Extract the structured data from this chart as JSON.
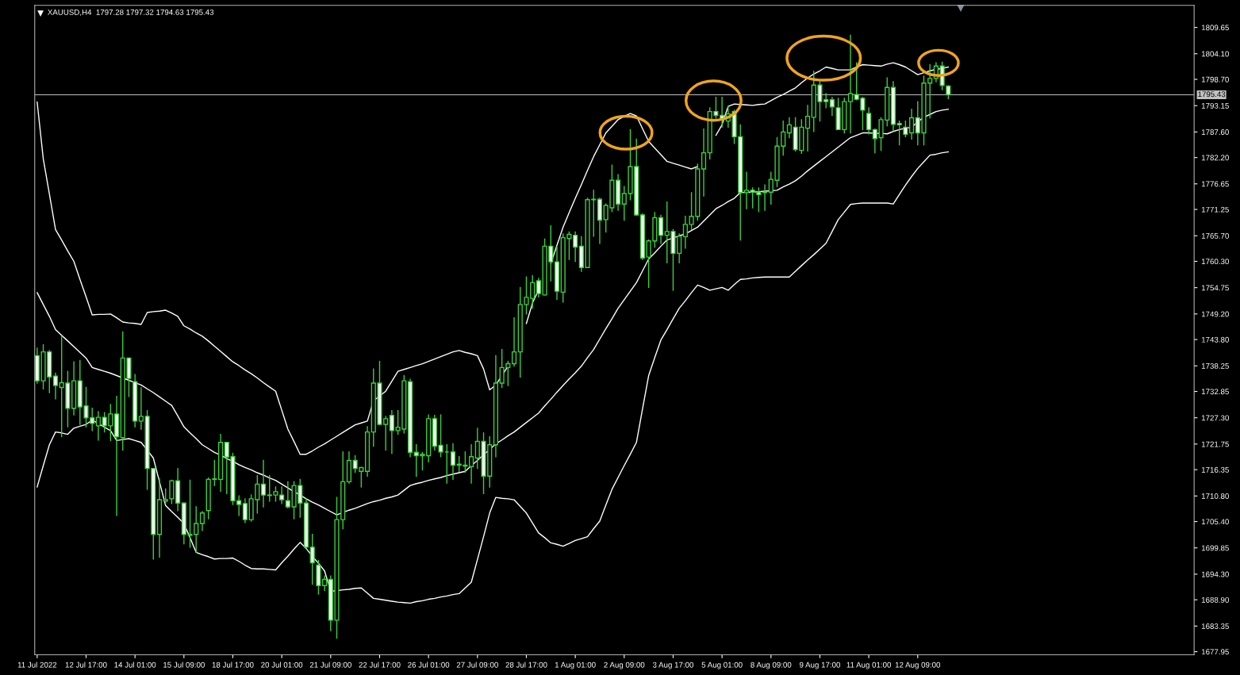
{
  "chart_data": {
    "type": "candlestick",
    "title": "XAUUSD,H4  1797.28 1797.32 1794.63 1795.43",
    "ylim": [
      1677.3,
      1814.3
    ],
    "categories": [
      "11 Jul 2022",
      null,
      null,
      null,
      null,
      null,
      null,
      null,
      "12 Jul 17:00",
      null,
      null,
      null,
      null,
      null,
      null,
      null,
      "14 Jul 01:00",
      null,
      null,
      null,
      null,
      null,
      null,
      null,
      "15 Jul 09:00",
      null,
      null,
      null,
      null,
      null,
      null,
      null,
      "18 Jul 17:00",
      null,
      null,
      null,
      null,
      null,
      null,
      null,
      "20 Jul 01:00",
      null,
      null,
      null,
      null,
      null,
      null,
      null,
      "21 Jul 09:00",
      null,
      null,
      null,
      null,
      null,
      null,
      null,
      "22 Jul 17:00",
      null,
      null,
      null,
      null,
      null,
      null,
      null,
      "26 Jul 01:00",
      null,
      null,
      null,
      null,
      null,
      null,
      null,
      "27 Jul 09:00",
      null,
      null,
      null,
      null,
      null,
      null,
      null,
      "28 Jul 17:00",
      null,
      null,
      null,
      null,
      null,
      null,
      null,
      "1 Aug 01:00",
      null,
      null,
      null,
      null,
      null,
      null,
      null,
      "2 Aug 09:00",
      null,
      null,
      null,
      null,
      null,
      null,
      null,
      "3 Aug 17:00",
      null,
      null,
      null,
      null,
      null,
      null,
      null,
      "5 Aug 01:00",
      null,
      null,
      null,
      null,
      null,
      null,
      null,
      "8 Aug 09:00",
      null,
      null,
      null,
      null,
      null,
      null,
      null,
      "9 Aug 17:00",
      null,
      null,
      null,
      null,
      null,
      null,
      null,
      "11 Aug 01:00",
      null,
      null,
      null,
      null,
      null,
      null,
      null,
      "12 Aug 09:00",
      null,
      null,
      null,
      null,
      null
    ],
    "yticks": [
      {
        "value": 1677.95,
        "label": "1677.95"
      },
      {
        "value": 1683.35,
        "label": "1683.35"
      },
      {
        "value": 1688.9,
        "label": "1688.90"
      },
      {
        "value": 1694.3,
        "label": "1694.30"
      },
      {
        "value": 1699.85,
        "label": "1699.85"
      },
      {
        "value": 1705.4,
        "label": "1705.40"
      },
      {
        "value": 1710.8,
        "label": "1710.80"
      },
      {
        "value": 1716.35,
        "label": "1716.35"
      },
      {
        "value": 1721.75,
        "label": "1721.75"
      },
      {
        "value": 1727.3,
        "label": "1727.30"
      },
      {
        "value": 1732.85,
        "label": "1732.85"
      },
      {
        "value": 1738.25,
        "label": "1738.25"
      },
      {
        "value": 1743.8,
        "label": "1743.80"
      },
      {
        "value": 1749.2,
        "label": "1749.20"
      },
      {
        "value": 1754.75,
        "label": "1754.75"
      },
      {
        "value": 1760.3,
        "label": "1760.30"
      },
      {
        "value": 1765.7,
        "label": "1765.70"
      },
      {
        "value": 1771.25,
        "label": "1771.25"
      },
      {
        "value": 1776.65,
        "label": "1776.65"
      },
      {
        "value": 1782.2,
        "label": "1782.20"
      },
      {
        "value": 1787.6,
        "label": "1787.60"
      },
      {
        "value": 1793.15,
        "label": "1793.15"
      },
      {
        "value": 1798.7,
        "label": "1798.70"
      },
      {
        "value": 1804.1,
        "label": "1804.10"
      },
      {
        "value": 1809.65,
        "label": "1809.65"
      }
    ],
    "ref_lines": [
      {
        "axis": "y",
        "value": 1795.43,
        "label": "1795.43",
        "color": "#c0c0c0"
      }
    ],
    "series": [
      {
        "type": "line",
        "color": "#ffffff",
        "values": [
          1793.9,
          1781.9,
          1774.5,
          1767.0,
          1764.8,
          1762.5,
          1760.3,
          1756.5,
          1752.8,
          1749.0,
          1749.1,
          1749.1,
          1749.2,
          1748.4,
          1747.5,
          1747.3,
          1747.2,
          1747.0,
          1749.5,
          1749.7,
          1749.8,
          1750.0,
          1749.4,
          1748.7,
          1746.7,
          1746.0,
          1745.2,
          1744.5,
          1743.5,
          1742.4,
          1741.3,
          1740.2,
          1739.1,
          1738.3,
          1737.4,
          1736.6,
          1735.7,
          1734.7,
          1733.8,
          1732.9,
          1728.9,
          1724.9,
          1722.3,
          1719.6,
          1719.6,
          1720.3,
          1721.1,
          1721.8,
          1722.6,
          1723.4,
          1724.2,
          1725.0,
          1725.8,
          1726.2,
          1726.6,
          1730.9,
          1731.9,
          1732.9,
          1735.0,
          1737.1,
          1737.5,
          1737.9,
          1738.3,
          1738.7,
          1739.2,
          1739.7,
          1740.2,
          1740.7,
          1741.2,
          1741.5,
          1741.1,
          1740.8,
          1740.4,
          1737.6,
          1733.2,
          1734.2,
          1736.2,
          1738.2,
          null,
          null,
          1747.2,
          1751.5,
          1754.3,
          null,
          1759.8,
          1763.7,
          1767.5,
          1770.6,
          1773.6,
          1776.5,
          1779.5,
          1782.4,
          1784.9,
          1787.4,
          1788.8,
          1790.2,
          1790.9,
          1791.5,
          1791.0,
          1788.3,
          1785.6,
          1784.2,
          1782.8,
          1781.4,
          1781.0,
          1780.6,
          1780.2,
          1779.8,
          1780.3,
          null,
          null,
          1786.9,
          1789.1,
          1793.0,
          1793.5,
          1793.4,
          1793.3,
          1793.2,
          1793.4,
          1793.5,
          1794.2,
          1794.9,
          1795.5,
          1796.2,
          1796.9,
          1798.0,
          1799.0,
          1799.8,
          1800.5,
          1801.3,
          1801.0,
          1800.7,
          1800.7,
          1800.7,
          1801.3,
          1801.8,
          1801.7,
          1801.6,
          1801.5,
          1801.9,
          1802.2,
          1801.8,
          1801.3,
          1800.5,
          1799.7,
          1800.1,
          1800.5,
          1800.8,
          1801.0,
          1801.3
        ]
      },
      {
        "type": "line",
        "color": "#ffffff",
        "values": [
          1753.7,
          1751.2,
          1748.7,
          1745.9,
          1744.7,
          1743.5,
          1742.3,
          1741.1,
          1739.9,
          1737.9,
          1737.5,
          1737.1,
          1736.7,
          1736.2,
          1735.7,
          1735.2,
          1734.7,
          1734.2,
          1733.4,
          1732.6,
          1731.7,
          1730.8,
          1729.9,
          1727.7,
          1725.4,
          1724.1,
          1722.9,
          1721.6,
          1720.8,
          1720.0,
          1719.4,
          1718.7,
          1718.1,
          1717.4,
          1716.8,
          1716.3,
          1715.7,
          1715.2,
          1714.6,
          1714.1,
          1713.3,
          1712.5,
          1711.7,
          1711.0,
          1710.2,
          1709.5,
          1708.9,
          1708.2,
          1707.5,
          1706.8,
          1707.3,
          1707.8,
          1708.2,
          1708.7,
          1709.2,
          1709.6,
          1709.9,
          1710.3,
          1710.6,
          1711.0,
          1712.0,
          1713.0,
          1713.4,
          1713.7,
          1714.1,
          1714.4,
          1714.7,
          1715.1,
          1715.4,
          1715.7,
          1716.0,
          1717.2,
          1718.3,
          1719.5,
          1720.6,
          1721.8,
          1722.6,
          1723.5,
          1724.3,
          1725.3,
          1726.3,
          1727.3,
          1728.3,
          1729.8,
          1731.2,
          1732.7,
          1734.1,
          1735.5,
          1736.8,
          1738.2,
          1740.0,
          1741.7,
          1743.9,
          1746.1,
          1748.2,
          1750.4,
          1752.2,
          1754.0,
          1755.8,
          1758.3,
          1760.8,
          1762.1,
          1763.5,
          1764.8,
          1765.2,
          1765.7,
          1766.1,
          1766.8,
          1767.5,
          1768.8,
          1770.1,
          1771.4,
          1772.1,
          1772.9,
          1773.6,
          1774.8,
          1774.9,
          1774.9,
          1775.0,
          1775.1,
          1775.2,
          1775.3,
          1776.0,
          1776.6,
          1777.3,
          1778.3,
          1779.4,
          1780.4,
          1781.4,
          1782.4,
          1783.4,
          1784.4,
          1785.4,
          1786.4,
          1786.9,
          1787.4,
          1787.4,
          1787.3,
          1787.3,
          1787.2,
          1787.7,
          1788.1,
          1788.4,
          1788.6,
          1789.7,
          1790.7,
          1791.3,
          1791.9,
          1792.2,
          1792.4
        ]
      },
      {
        "type": "line",
        "color": "#ffffff",
        "values": [
          1712.7,
          1717.2,
          1721.6,
          1724.3,
          1724.1,
          1723.8,
          1725.1,
          1725.5,
          1725.9,
          1726.8,
          1726.1,
          1725.3,
          1724.6,
          1722.5,
          1722.7,
          1722.9,
          1722.5,
          1722.1,
          1720.5,
          1718.8,
          1713.8,
          1708.8,
          1707.5,
          1706.3,
          1705.0,
          1702.0,
          1698.9,
          1698.4,
          1698.0,
          1697.5,
          1697.6,
          1697.6,
          1697.7,
          1697.0,
          1696.2,
          1695.5,
          1695.4,
          1695.4,
          1695.3,
          1695.2,
          1696.7,
          1698.1,
          1699.6,
          1701.0,
          1699.7,
          1698.1,
          1696.6,
          1695.0,
          1690.7,
          1690.8,
          1691.0,
          1691.1,
          1691.3,
          1691.4,
          1690.3,
          1689.2,
          1689.0,
          1688.8,
          1688.6,
          1688.4,
          1688.3,
          1688.2,
          1688.5,
          1688.7,
          1689.0,
          1689.2,
          1689.5,
          1689.7,
          1690.0,
          1690.2,
          1691.4,
          1692.6,
          1697.4,
          1702.2,
          1707.2,
          1710.5,
          1710.3,
          1710.2,
          1710.0,
          1708.6,
          1707.2,
          1705.1,
          1703.0,
          1702.0,
          1700.9,
          1700.6,
          1700.2,
          1700.8,
          1701.4,
          1701.8,
          1702.2,
          1703.9,
          1705.5,
          1708.9,
          1712.2,
          1714.7,
          1717.2,
          1719.6,
          1722.1,
          1729.2,
          1736.2,
          1740.0,
          1743.7,
          1745.9,
          1748.2,
          1750.4,
          1752.0,
          1753.7,
          1755.3,
          1754.8,
          1754.2,
          1754.5,
          1754.8,
          1754.2,
          1755.4,
          1756.5,
          1756.6,
          1756.8,
          1756.9,
          1757.0,
          1757.0,
          1757.0,
          1757.0,
          1757.0,
          1758.2,
          1759.4,
          1760.6,
          1761.7,
          1762.9,
          1764.1,
          1766.6,
          1769.1,
          1770.7,
          1772.3,
          1772.5,
          1772.6,
          1772.6,
          1772.6,
          1772.6,
          1772.6,
          1772.4,
          1774.4,
          1776.4,
          1778.2,
          1779.9,
          1781.3,
          1782.7,
          1782.9,
          1783.2,
          1783.4
        ]
      },
      {
        "color": "#3ccf3c",
        "ohlc": [
          [
            1740.4,
            1742.0,
            1734.6,
            1735.1
          ],
          [
            1735.1,
            1742.7,
            1733.4,
            1741.2
          ],
          [
            1741.2,
            1741.5,
            1732.6,
            1735.9
          ],
          [
            1736.1,
            1736.7,
            1731.3,
            1734.1
          ],
          [
            1733.7,
            1744.5,
            1723.3,
            1734.7
          ],
          [
            1734.6,
            1737.1,
            1725.4,
            1729.3
          ],
          [
            1729.3,
            1739.1,
            1727.9,
            1735.1
          ],
          [
            1735.1,
            1739.4,
            1725.9,
            1729.6
          ],
          [
            1729.8,
            1733.7,
            1725.4,
            1727.3
          ],
          [
            1727.3,
            1729.3,
            1724.6,
            1726.1
          ],
          [
            1725.6,
            1728.6,
            1722.6,
            1727.4
          ],
          [
            1727.4,
            1728.4,
            1724.3,
            1725.6
          ],
          [
            1725.6,
            1730.1,
            1722.5,
            1728.1
          ],
          [
            1728.1,
            1731.8,
            1706.7,
            1723.3
          ],
          [
            1723.1,
            1745.4,
            1720.5,
            1739.9
          ],
          [
            1739.9,
            1739.9,
            1731.8,
            1735.6
          ],
          [
            1734.9,
            1736.4,
            1725.4,
            1726.6
          ],
          [
            1726.6,
            1733.6,
            1724.9,
            1727.6
          ],
          [
            1727.6,
            1728.8,
            1712.2,
            1716.6
          ],
          [
            1716.6,
            1716.6,
            1697.5,
            1702.7
          ],
          [
            1702.7,
            1714.5,
            1697.9,
            1710.0
          ],
          [
            1709.7,
            1712.3,
            1709.2,
            1710.0
          ],
          [
            1710.2,
            1714.1,
            1709.2,
            1714.0
          ],
          [
            1714.0,
            1716.6,
            1707.7,
            1709.3
          ],
          [
            1709.3,
            1709.3,
            1700.7,
            1702.7
          ],
          [
            1702.7,
            1714.1,
            1700.0,
            1702.5
          ],
          [
            1702.7,
            1708.5,
            1698.9,
            1705.0
          ],
          [
            1705.0,
            1707.5,
            1703.5,
            1707.2
          ],
          [
            1707.7,
            1714.6,
            1706.0,
            1714.3
          ],
          [
            1714.3,
            1718.3,
            1713.0,
            1714.4
          ],
          [
            1714.3,
            1723.8,
            1711.8,
            1722.1
          ],
          [
            1722.1,
            1722.1,
            1711.3,
            1719.0
          ],
          [
            1719.1,
            1719.8,
            1709.0,
            1709.8
          ],
          [
            1709.8,
            1710.8,
            1706.7,
            1709.0
          ],
          [
            1709.2,
            1710.2,
            1705.2,
            1705.8
          ],
          [
            1705.8,
            1711.0,
            1705.5,
            1710.2
          ],
          [
            1710.0,
            1715.1,
            1707.2,
            1713.3
          ],
          [
            1713.3,
            1718.3,
            1708.5,
            1711.0
          ],
          [
            1711.0,
            1715.1,
            1709.7,
            1710.9
          ],
          [
            1711.0,
            1712.7,
            1709.7,
            1711.7
          ],
          [
            1711.0,
            1712.7,
            1709.2,
            1710.0
          ],
          [
            1709.8,
            1713.8,
            1708.3,
            1708.5
          ],
          [
            1708.5,
            1713.8,
            1706.0,
            1713.0
          ],
          [
            1713.0,
            1714.3,
            1706.3,
            1709.3
          ],
          [
            1709.3,
            1710.2,
            1700.0,
            1700.0
          ],
          [
            1700.0,
            1702.7,
            1692.2,
            1696.7
          ],
          [
            1696.2,
            1697.2,
            1690.1,
            1691.9
          ],
          [
            1691.9,
            1693.9,
            1690.9,
            1693.2
          ],
          [
            1693.2,
            1693.9,
            1682.4,
            1684.6
          ],
          [
            1684.6,
            1710.5,
            1680.8,
            1705.8
          ],
          [
            1705.8,
            1720.1,
            1703.9,
            1713.8
          ],
          [
            1713.8,
            1720.1,
            1713.5,
            1718.3
          ],
          [
            1718.3,
            1719.3,
            1715.8,
            1716.6
          ],
          [
            1716.0,
            1716.8,
            1712.7,
            1716.8
          ],
          [
            1716.0,
            1725.4,
            1715.0,
            1724.3
          ],
          [
            1724.3,
            1737.6,
            1721.3,
            1734.6
          ],
          [
            1734.6,
            1739.2,
            1725.8,
            1725.9
          ],
          [
            1725.9,
            1727.6,
            1720.5,
            1727.1
          ],
          [
            1727.8,
            1728.8,
            1719.8,
            1724.6
          ],
          [
            1724.6,
            1728.8,
            1723.8,
            1725.3
          ],
          [
            1724.9,
            1736.2,
            1724.1,
            1735.1
          ],
          [
            1734.9,
            1735.4,
            1719.1,
            1720.0
          ],
          [
            1720.0,
            1721.6,
            1715.0,
            1719.3
          ],
          [
            1719.3,
            1720.0,
            1716.3,
            1719.6
          ],
          [
            1719.3,
            1727.9,
            1718.0,
            1727.1
          ],
          [
            1727.1,
            1727.8,
            1720.5,
            1721.3
          ],
          [
            1721.5,
            1727.9,
            1719.1,
            1720.1
          ],
          [
            1720.1,
            1721.6,
            1713.5,
            1720.1
          ],
          [
            1720.1,
            1721.8,
            1714.3,
            1717.3
          ],
          [
            1717.5,
            1719.1,
            1716.0,
            1717.3
          ],
          [
            1717.3,
            1720.1,
            1715.8,
            1717.1
          ],
          [
            1717.0,
            1721.6,
            1713.5,
            1719.1
          ],
          [
            1718.8,
            1725.1,
            1716.6,
            1722.3
          ],
          [
            1722.3,
            1724.1,
            1711.3,
            1715.0
          ],
          [
            1715.0,
            1723.3,
            1712.7,
            1721.6
          ],
          [
            1721.6,
            1740.4,
            1719.1,
            1734.6
          ],
          [
            1734.6,
            1741.7,
            1733.7,
            1737.9
          ],
          [
            1737.9,
            1739.2,
            1734.1,
            1738.7
          ],
          [
            1738.7,
            1748.4,
            1738.2,
            1741.2
          ],
          [
            1741.2,
            1754.8,
            1735.9,
            1751.2
          ],
          [
            1751.2,
            1757.0,
            1749.2,
            1752.7
          ],
          [
            1752.5,
            1757.3,
            1750.4,
            1755.8
          ],
          [
            1756.2,
            1756.7,
            1752.8,
            1753.5
          ],
          [
            1753.2,
            1765.0,
            1753.2,
            1763.5
          ],
          [
            1763.5,
            1767.8,
            1756.2,
            1760.2
          ],
          [
            1760.2,
            1763.3,
            1752.3,
            1754.0
          ],
          [
            1753.8,
            1766.1,
            1751.7,
            1765.3
          ],
          [
            1765.1,
            1766.5,
            1760.7,
            1766.0
          ],
          [
            1765.8,
            1766.5,
            1760.3,
            1763.3
          ],
          [
            1763.5,
            1765.5,
            1758.2,
            1759.0
          ],
          [
            1759.0,
            1773.6,
            1759.0,
            1773.3
          ],
          [
            1773.3,
            1775.3,
            1765.6,
            1773.4
          ],
          [
            1773.4,
            1773.6,
            1764.1,
            1769.0
          ],
          [
            1769.1,
            1772.4,
            1766.5,
            1772.1
          ],
          [
            1771.6,
            1780.6,
            1770.8,
            1777.4
          ],
          [
            1777.4,
            1778.6,
            1771.1,
            1772.4
          ],
          [
            1772.4,
            1776.1,
            1769.0,
            1774.6
          ],
          [
            1774.6,
            1788.1,
            1773.3,
            1780.3
          ],
          [
            1780.3,
            1786.1,
            1770.0,
            1770.1
          ],
          [
            1770.1,
            1770.3,
            1760.7,
            1761.0
          ],
          [
            1761.2,
            1764.8,
            1754.8,
            1764.6
          ],
          [
            1764.6,
            1770.6,
            1763.3,
            1769.5
          ],
          [
            1769.5,
            1770.0,
            1764.1,
            1765.8
          ],
          [
            1765.8,
            1772.8,
            1760.0,
            1766.6
          ],
          [
            1766.6,
            1767.0,
            1754.2,
            1762.0
          ],
          [
            1762.0,
            1766.1,
            1760.0,
            1765.6
          ],
          [
            1765.5,
            1769.8,
            1763.1,
            1768.1
          ],
          [
            1768.1,
            1774.8,
            1767.0,
            1769.8
          ],
          [
            1769.8,
            1780.8,
            1769.0,
            1779.8
          ],
          [
            1779.8,
            1788.2,
            1774.1,
            1783.2
          ],
          [
            1783.2,
            1792.7,
            1781.9,
            1791.9
          ],
          [
            1791.9,
            1794.9,
            1790.6,
            1791.1
          ],
          [
            1791.1,
            1794.9,
            1788.6,
            1790.2
          ],
          [
            1789.9,
            1793.0,
            1788.6,
            1791.4
          ],
          [
            1791.9,
            1792.2,
            1785.2,
            1786.6
          ],
          [
            1786.6,
            1789.1,
            1764.8,
            1774.8
          ],
          [
            1774.8,
            1779.1,
            1771.4,
            1775.3
          ],
          [
            1775.3,
            1775.8,
            1771.6,
            1774.9
          ],
          [
            1774.9,
            1775.8,
            1770.8,
            1774.4
          ],
          [
            1774.8,
            1776.4,
            1771.1,
            1774.9
          ],
          [
            1774.9,
            1779.1,
            1772.4,
            1777.6
          ],
          [
            1777.4,
            1786.4,
            1776.1,
            1784.6
          ],
          [
            1784.6,
            1789.9,
            1782.7,
            1787.6
          ],
          [
            1787.4,
            1790.6,
            1786.4,
            1789.1
          ],
          [
            1788.6,
            1790.6,
            1783.6,
            1783.9
          ],
          [
            1783.7,
            1790.2,
            1783.1,
            1788.6
          ],
          [
            1788.4,
            1793.2,
            1783.6,
            1790.9
          ],
          [
            1790.7,
            1800.4,
            1787.7,
            1797.5
          ],
          [
            1797.5,
            1798.2,
            1789.9,
            1794.0
          ],
          [
            1794.4,
            1795.7,
            1792.7,
            1794.0
          ],
          [
            1794.4,
            1794.9,
            1791.1,
            1792.9
          ],
          [
            1792.7,
            1794.7,
            1788.1,
            1788.1
          ],
          [
            1788.1,
            1794.7,
            1787.4,
            1794.0
          ],
          [
            1794.0,
            1808.0,
            1787.4,
            1795.7
          ],
          [
            1795.5,
            1802.2,
            1794.4,
            1794.5
          ],
          [
            1794.7,
            1794.9,
            1788.1,
            1792.2
          ],
          [
            1791.5,
            1792.7,
            1787.2,
            1788.1
          ],
          [
            1788.1,
            1788.2,
            1783.2,
            1786.2
          ],
          [
            1786.4,
            1790.6,
            1783.7,
            1790.2
          ],
          [
            1790.1,
            1799.0,
            1788.9,
            1797.0
          ],
          [
            1797.0,
            1798.2,
            1787.7,
            1789.2
          ],
          [
            1789.4,
            1789.9,
            1784.9,
            1789.1
          ],
          [
            1788.6,
            1789.9,
            1786.6,
            1787.1
          ],
          [
            1787.4,
            1792.4,
            1786.1,
            1790.6
          ],
          [
            1790.6,
            1794.0,
            1784.9,
            1787.4
          ],
          [
            1787.4,
            1799.4,
            1784.9,
            1797.9
          ],
          [
            1797.9,
            1801.8,
            1790.6,
            1798.9
          ],
          [
            1798.9,
            1802.2,
            1798.2,
            1801.5
          ],
          [
            1801.5,
            1802.3,
            1796.5,
            1797.4
          ],
          [
            1797.28,
            1797.32,
            1794.63,
            1795.43
          ]
        ]
      }
    ]
  }
}
